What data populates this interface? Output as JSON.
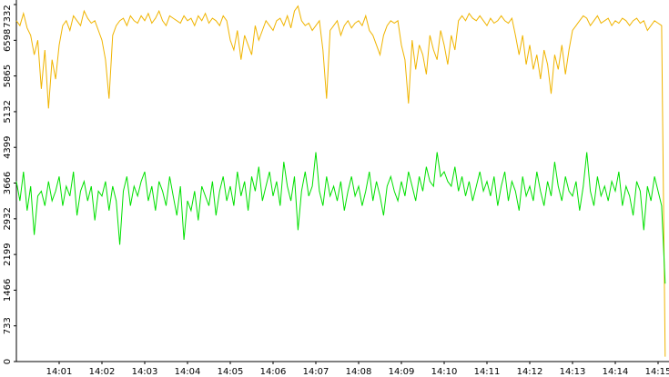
{
  "chart_data": {
    "type": "line",
    "categories": [
      null,
      null,
      null,
      null,
      null,
      null,
      null,
      null,
      null,
      null,
      null,
      null,
      "14:01",
      null,
      null,
      null,
      null,
      null,
      null,
      null,
      null,
      null,
      null,
      null,
      "14:02",
      null,
      null,
      null,
      null,
      null,
      null,
      null,
      null,
      null,
      null,
      null,
      "14:03",
      null,
      null,
      null,
      null,
      null,
      null,
      null,
      null,
      null,
      null,
      null,
      "14:04",
      null,
      null,
      null,
      null,
      null,
      null,
      null,
      null,
      null,
      null,
      null,
      "14:05",
      null,
      null,
      null,
      null,
      null,
      null,
      null,
      null,
      null,
      null,
      null,
      "14:06",
      null,
      null,
      null,
      null,
      null,
      null,
      null,
      null,
      null,
      null,
      null,
      "14:07",
      null,
      null,
      null,
      null,
      null,
      null,
      null,
      null,
      null,
      null,
      null,
      "14:08",
      null,
      null,
      null,
      null,
      null,
      null,
      null,
      null,
      null,
      null,
      null,
      "14:09",
      null,
      null,
      null,
      null,
      null,
      null,
      null,
      null,
      null,
      null,
      null,
      "14:10",
      null,
      null,
      null,
      null,
      null,
      null,
      null,
      null,
      null,
      null,
      null,
      "14:11",
      null,
      null,
      null,
      null,
      null,
      null,
      null,
      null,
      null,
      null,
      null,
      "14:12",
      null,
      null,
      null,
      null,
      null,
      null,
      null,
      null,
      null,
      null,
      null,
      "14:13",
      null,
      null,
      null,
      null,
      null,
      null,
      null,
      null,
      null,
      null,
      null,
      "14:14",
      null,
      null,
      null,
      null,
      null,
      null,
      null,
      null,
      null,
      null,
      null,
      "14:15",
      null,
      null
    ],
    "series": [
      {
        "color": "#f0b400",
        "values": [
          7000,
          6900,
          7150,
          6850,
          6700,
          6300,
          6600,
          5600,
          6400,
          5200,
          6200,
          5800,
          6500,
          6900,
          7000,
          6800,
          7100,
          7000,
          6900,
          7200,
          7050,
          6950,
          7000,
          6800,
          6600,
          6200,
          5400,
          6700,
          6900,
          7000,
          7050,
          6900,
          7100,
          7000,
          6950,
          7100,
          7000,
          7150,
          6950,
          7050,
          7200,
          7000,
          6900,
          7100,
          7050,
          7000,
          6950,
          7100,
          7000,
          7050,
          6900,
          7100,
          7000,
          7150,
          6950,
          7050,
          7000,
          6900,
          7100,
          7000,
          6600,
          6400,
          6800,
          6200,
          6700,
          6500,
          6300,
          6900,
          6600,
          6800,
          7000,
          6900,
          6800,
          7000,
          7050,
          6900,
          7100,
          6850,
          7200,
          7300,
          7000,
          6900,
          6950,
          6800,
          6900,
          7000,
          6400,
          5400,
          6800,
          6900,
          7000,
          6700,
          6900,
          7000,
          6850,
          6950,
          7000,
          6900,
          7100,
          6800,
          6700,
          6500,
          6300,
          6700,
          6900,
          7000,
          6950,
          7000,
          6500,
          6200,
          5300,
          6600,
          6000,
          6500,
          6300,
          5900,
          6700,
          6400,
          6200,
          6800,
          6500,
          6100,
          6700,
          6400,
          7000,
          7100,
          7000,
          7150,
          7050,
          7000,
          7100,
          7000,
          6900,
          7050,
          6950,
          7000,
          7100,
          7000,
          6950,
          7050,
          6700,
          6300,
          6700,
          6100,
          6500,
          6000,
          6300,
          5800,
          6400,
          6100,
          5500,
          6300,
          6000,
          6500,
          5900,
          6400,
          6800,
          6900,
          7000,
          7100,
          7050,
          6900,
          7000,
          7100,
          6950,
          7000,
          7050,
          6900,
          7000,
          6950,
          7050,
          7000,
          6900,
          7000,
          7050,
          6950,
          7000,
          6800,
          6900,
          7000,
          6950,
          6900,
          100
        ]
      },
      {
        "color": "#00e000",
        "values": [
          3700,
          3300,
          3900,
          3100,
          3600,
          2600,
          3400,
          3500,
          3200,
          3700,
          3300,
          3500,
          3800,
          3200,
          3600,
          3400,
          3900,
          3000,
          3500,
          3700,
          3300,
          3600,
          2900,
          3500,
          3400,
          3700,
          3100,
          3600,
          3300,
          2400,
          3500,
          3800,
          3200,
          3600,
          3400,
          3700,
          3900,
          3300,
          3600,
          3100,
          3700,
          3500,
          3200,
          3800,
          3400,
          3000,
          3600,
          2500,
          3300,
          3100,
          3500,
          2900,
          3600,
          3400,
          3200,
          3700,
          3000,
          3500,
          3800,
          3300,
          3600,
          3200,
          3900,
          3400,
          3700,
          3100,
          3800,
          3500,
          4000,
          3300,
          3600,
          3900,
          3400,
          3700,
          3200,
          4100,
          3600,
          3300,
          3800,
          2700,
          3500,
          3900,
          3400,
          3600,
          4300,
          3500,
          3200,
          3800,
          3400,
          3600,
          3300,
          3700,
          3100,
          3500,
          3800,
          3400,
          3600,
          3200,
          3500,
          3900,
          3300,
          3700,
          3400,
          3000,
          3600,
          3800,
          3500,
          3300,
          3700,
          3400,
          3900,
          3600,
          3300,
          3800,
          3500,
          4000,
          3700,
          3600,
          4300,
          3800,
          3900,
          3700,
          3600,
          4000,
          3500,
          3800,
          3400,
          3700,
          3300,
          3600,
          3900,
          3500,
          3700,
          3400,
          3800,
          3200,
          3600,
          3900,
          3300,
          3700,
          3500,
          3100,
          3800,
          3400,
          3600,
          3300,
          3900,
          3500,
          3200,
          3700,
          3400,
          4100,
          3600,
          3300,
          3800,
          3500,
          3400,
          3700,
          3100,
          3600,
          4300,
          3500,
          3200,
          3800,
          3400,
          3600,
          3300,
          3700,
          3500,
          3900,
          3200,
          3600,
          3400,
          3000,
          3700,
          3500,
          2700,
          3600,
          3300,
          3800,
          3500,
          3200,
          1600
        ]
      }
    ],
    "ylim": [
      0,
      7332
    ],
    "yticks": [
      0,
      733,
      1466,
      2199,
      2932,
      3666,
      4399,
      5132,
      5865,
      6598,
      7332
    ]
  }
}
